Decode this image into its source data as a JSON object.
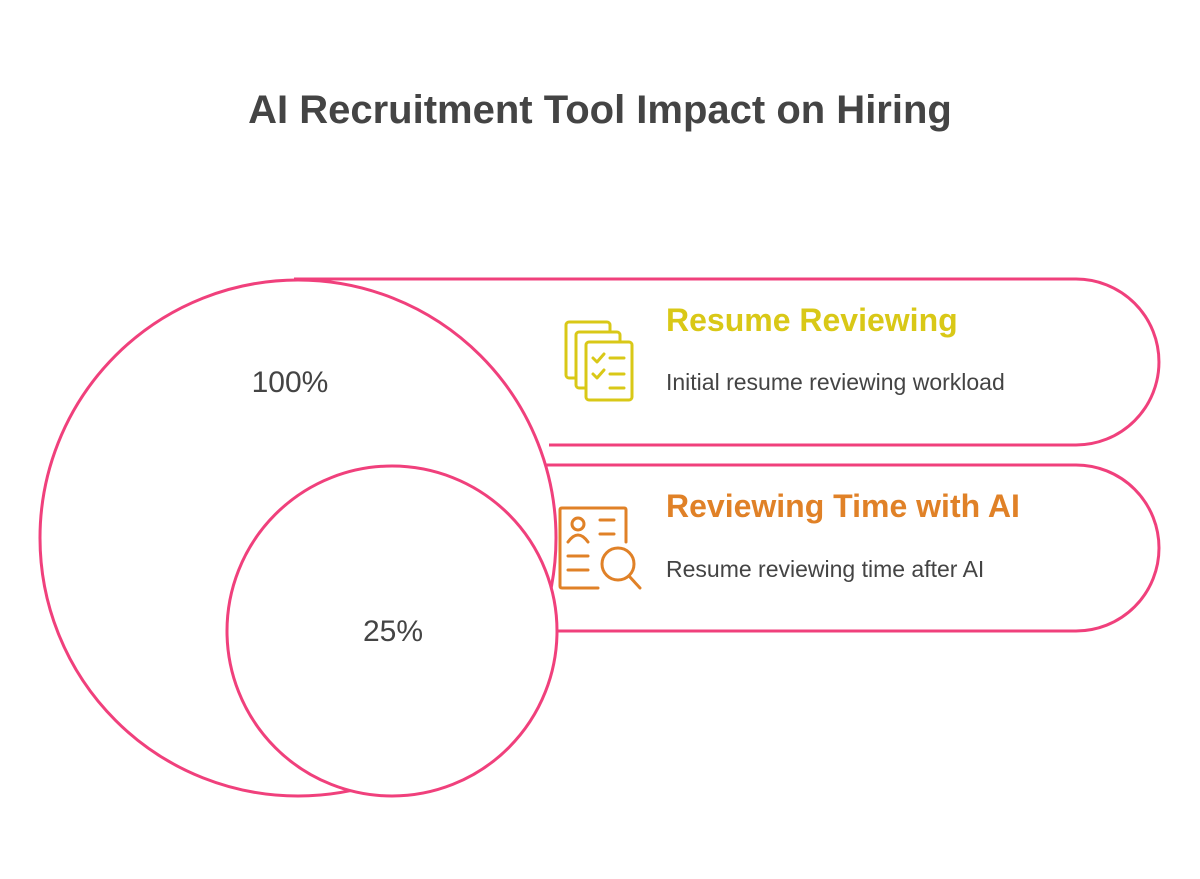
{
  "title": "AI Recruitment Tool Impact on Hiring",
  "colors": {
    "outline": "#f0407c",
    "heading_1": "#d9c817",
    "heading_2": "#e08127",
    "text": "#444444"
  },
  "items": [
    {
      "percent": "100%",
      "heading": "Resume Reviewing",
      "description": "Initial resume reviewing workload",
      "icon": "document-checklist-icon"
    },
    {
      "percent": "25%",
      "heading": "Reviewing Time with AI",
      "description": "Resume reviewing time after AI",
      "icon": "resume-search-icon"
    }
  ]
}
